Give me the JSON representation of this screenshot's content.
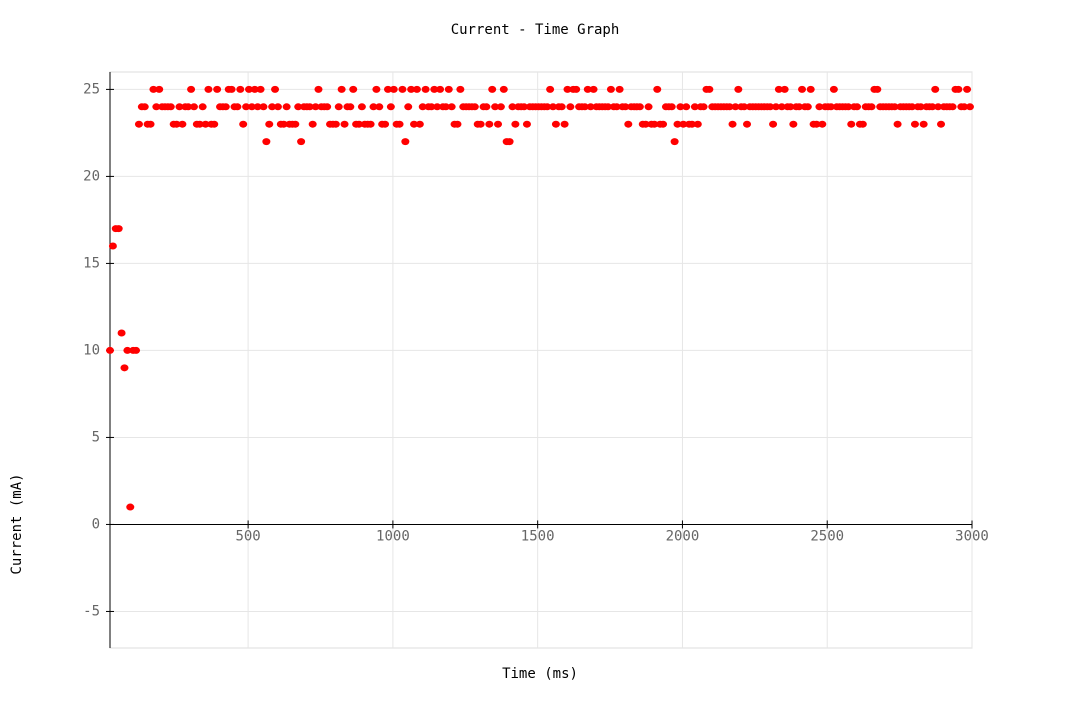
{
  "chart_data": {
    "type": "scatter",
    "title": "Current - Time Graph",
    "x_label": "Time (ms)",
    "y_label": "Current (mA)",
    "color": "#ff0000",
    "grid": true,
    "xlim": [
      23,
      3000
    ],
    "ylim": [
      -7.1,
      26
    ],
    "xticks": [
      500,
      1000,
      1500,
      2000,
      2500,
      3000
    ],
    "yticks": [
      -5,
      0,
      5,
      10,
      15,
      20,
      25
    ],
    "x": [
      23,
      33,
      43,
      53,
      63,
      73,
      83,
      93,
      103,
      113,
      123,
      133,
      143,
      153,
      163,
      173,
      183,
      193,
      203,
      213,
      223,
      233,
      243,
      253,
      263,
      273,
      283,
      293,
      303,
      313,
      323,
      333,
      343,
      353,
      363,
      373,
      383,
      393,
      403,
      413,
      423,
      433,
      443,
      453,
      463,
      473,
      483,
      493,
      503,
      513,
      523,
      533,
      543,
      553,
      563,
      573,
      583,
      593,
      603,
      613,
      623,
      633,
      643,
      653,
      663,
      673,
      683,
      693,
      703,
      713,
      723,
      733,
      743,
      753,
      763,
      773,
      783,
      793,
      803,
      813,
      823,
      833,
      843,
      853,
      863,
      873,
      883,
      893,
      903,
      913,
      923,
      933,
      943,
      953,
      963,
      973,
      983,
      993,
      1003,
      1013,
      1023,
      1033,
      1043,
      1053,
      1063,
      1073,
      1083,
      1093,
      1103,
      1113,
      1123,
      1133,
      1143,
      1153,
      1163,
      1173,
      1183,
      1193,
      1203,
      1213,
      1223,
      1233,
      1243,
      1253,
      1263,
      1273,
      1283,
      1293,
      1303,
      1313,
      1323,
      1333,
      1343,
      1353,
      1363,
      1373,
      1383,
      1393,
      1403,
      1413,
      1423,
      1433,
      1443,
      1453,
      1463,
      1473,
      1483,
      1493,
      1503,
      1513,
      1523,
      1533,
      1543,
      1553,
      1563,
      1573,
      1583,
      1593,
      1603,
      1613,
      1623,
      1633,
      1643,
      1653,
      1663,
      1673,
      1683,
      1693,
      1703,
      1713,
      1723,
      1733,
      1743,
      1753,
      1763,
      1773,
      1783,
      1793,
      1803,
      1813,
      1823,
      1833,
      1843,
      1853,
      1863,
      1873,
      1883,
      1893,
      1903,
      1913,
      1923,
      1933,
      1943,
      1953,
      1963,
      1973,
      1983,
      1993,
      2003,
      2013,
      2023,
      2033,
      2043,
      2053,
      2063,
      2073,
      2083,
      2093,
      2103,
      2113,
      2123,
      2133,
      2143,
      2153,
      2163,
      2173,
      2183,
      2193,
      2203,
      2213,
      2223,
      2233,
      2243,
      2253,
      2263,
      2273,
      2283,
      2293,
      2303,
      2313,
      2323,
      2333,
      2343,
      2353,
      2363,
      2373,
      2383,
      2393,
      2403,
      2413,
      2423,
      2433,
      2443,
      2453,
      2463,
      2473,
      2483,
      2493,
      2503,
      2513,
      2523,
      2533,
      2543,
      2553,
      2563,
      2573,
      2583,
      2593,
      2603,
      2613,
      2623,
      2633,
      2643,
      2653,
      2663,
      2673,
      2683,
      2693,
      2703,
      2713,
      2723,
      2733,
      2743,
      2753,
      2763,
      2773,
      2783,
      2793,
      2803,
      2813,
      2823,
      2833,
      2843,
      2853,
      2863,
      2873,
      2883,
      2893,
      2903,
      2913,
      2923,
      2933,
      2943,
      2953,
      2963,
      2973,
      2983,
      2993
    ],
    "values": [
      10,
      16,
      17,
      17,
      11,
      9,
      10,
      1,
      10,
      10,
      23,
      24,
      24,
      23,
      23,
      25,
      24,
      25,
      24,
      24,
      24,
      24,
      23,
      23,
      24,
      23,
      24,
      24,
      25,
      24,
      23,
      23,
      24,
      23,
      25,
      23,
      23,
      25,
      24,
      24,
      24,
      25,
      25,
      24,
      24,
      25,
      23,
      24,
      25,
      24,
      25,
      24,
      25,
      24,
      22,
      23,
      24,
      25,
      24,
      23,
      23,
      24,
      23,
      23,
      23,
      24,
      22,
      24,
      24,
      24,
      23,
      24,
      25,
      24,
      24,
      24,
      23,
      23,
      23,
      24,
      25,
      23,
      24,
      24,
      25,
      23,
      23,
      24,
      23,
      23,
      23,
      24,
      25,
      24,
      23,
      23,
      25,
      24,
      25,
      23,
      23,
      25,
      22,
      24,
      25,
      23,
      25,
      23,
      24,
      25,
      24,
      24,
      25,
      24,
      25,
      24,
      24,
      25,
      24,
      23,
      23,
      25,
      24,
      24,
      24,
      24,
      24,
      23,
      23,
      24,
      24,
      23,
      25,
      24,
      23,
      24,
      25,
      22,
      22,
      24,
      23,
      24,
      24,
      24,
      23,
      24,
      24,
      24,
      24,
      24,
      24,
      24,
      25,
      24,
      23,
      24,
      24,
      23,
      25,
      24,
      25,
      25,
      24,
      24,
      24,
      25,
      24,
      25,
      24,
      24,
      24,
      24,
      24,
      25,
      24,
      24,
      25,
      24,
      24,
      23,
      24,
      24,
      24,
      24,
      23,
      23,
      24,
      23,
      23,
      25,
      23,
      23,
      24,
      24,
      24,
      22,
      23,
      24,
      23,
      24,
      23,
      23,
      24,
      23,
      24,
      24,
      25,
      25,
      24,
      24,
      24,
      24,
      24,
      24,
      24,
      23,
      24,
      25,
      24,
      24,
      23,
      24,
      24,
      24,
      24,
      24,
      24,
      24,
      24,
      23,
      24,
      25,
      24,
      25,
      24,
      24,
      23,
      24,
      24,
      25,
      24,
      24,
      25,
      23,
      23,
      24,
      23,
      24,
      24,
      24,
      25,
      24,
      24,
      24,
      24,
      24,
      23,
      24,
      24,
      23,
      23,
      24,
      24,
      24,
      25,
      25,
      24,
      24,
      24,
      24,
      24,
      24,
      23,
      24,
      24,
      24,
      24,
      24,
      23,
      24,
      24,
      23,
      24,
      24,
      24,
      25,
      24,
      23,
      24,
      24,
      24,
      24,
      25,
      25,
      24,
      24,
      25,
      24
    ]
  }
}
